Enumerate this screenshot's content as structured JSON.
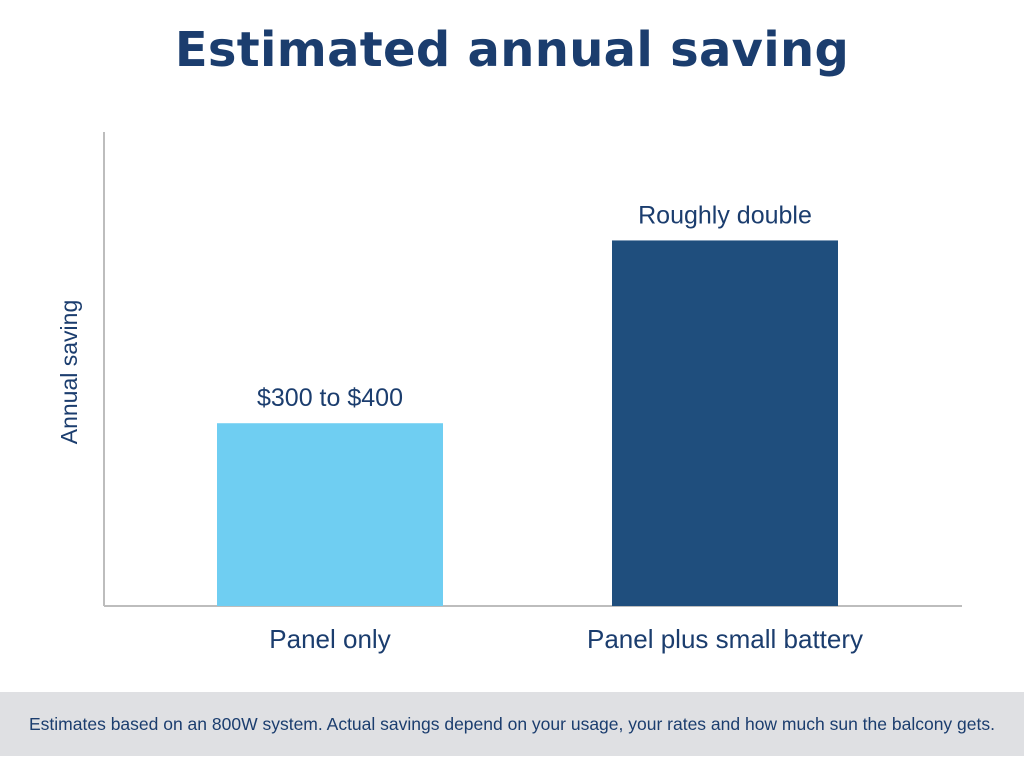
{
  "chart_data": {
    "type": "bar",
    "title": "Estimated annual saving",
    "ylabel": "Annual saving",
    "xlabel": "",
    "categories": [
      "Panel only",
      "Panel plus small battery"
    ],
    "values": [
      350,
      700
    ],
    "ylim": [
      0,
      900
    ],
    "data_labels": [
      "$300 to $400",
      "Roughly double"
    ],
    "colors": [
      "#6fcef2",
      "#1f4e7d"
    ],
    "grid": false,
    "legend": "none"
  },
  "colors": {
    "text": "#1b3d6e",
    "axis": "#bdbdbd",
    "footnote_background": "#dfe0e3"
  },
  "footnote": "Estimates based on an 800W system. Actual savings depend on your usage, your rates and how much sun the balcony gets."
}
